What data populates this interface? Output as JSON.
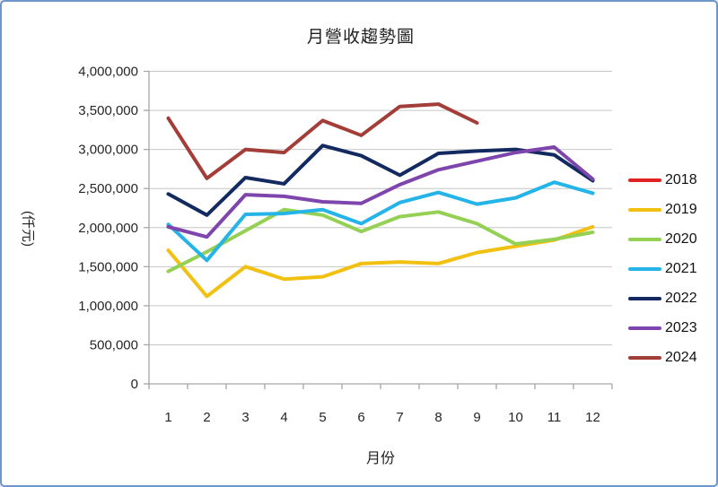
{
  "window": {
    "background": "#ffffff",
    "border_color": "#6d96cb"
  },
  "chart_data": {
    "type": "line",
    "title": "月營收趨勢圖",
    "xlabel": "月份",
    "ylabel": "(仟元)",
    "categories": [
      "1",
      "2",
      "3",
      "4",
      "5",
      "6",
      "7",
      "8",
      "9",
      "10",
      "11",
      "12"
    ],
    "ylim": [
      0,
      4000000
    ],
    "ytick_step": 500000,
    "grid": true,
    "legend_position": "right",
    "line_width": 4,
    "colors": {
      "gridline": "#c6c6c6",
      "axis": "#a6a6a6",
      "tick_label": "#262626"
    },
    "series": [
      {
        "name": "2018",
        "color": "#e02222",
        "values": []
      },
      {
        "name": "2019",
        "color": "#f2c010",
        "values": [
          1710000,
          1120000,
          1500000,
          1340000,
          1370000,
          1540000,
          1560000,
          1540000,
          1680000,
          1760000,
          1840000,
          2010000
        ]
      },
      {
        "name": "2020",
        "color": "#94d053",
        "values": [
          1440000,
          1690000,
          1960000,
          2230000,
          2160000,
          1950000,
          2140000,
          2200000,
          2050000,
          1790000,
          1850000,
          1940000
        ]
      },
      {
        "name": "2021",
        "color": "#25b4e8",
        "values": [
          2040000,
          1580000,
          2170000,
          2180000,
          2230000,
          2050000,
          2320000,
          2450000,
          2300000,
          2380000,
          2580000,
          2440000
        ]
      },
      {
        "name": "2022",
        "color": "#132a60",
        "values": [
          2430000,
          2160000,
          2640000,
          2560000,
          3050000,
          2920000,
          2670000,
          2950000,
          2980000,
          3000000,
          2930000,
          2600000
        ]
      },
      {
        "name": "2023",
        "color": "#7e46ad",
        "values": [
          2010000,
          1880000,
          2420000,
          2400000,
          2330000,
          2310000,
          2550000,
          2740000,
          2850000,
          2960000,
          3030000,
          2620000
        ]
      },
      {
        "name": "2024",
        "color": "#a33d38",
        "values": [
          3400000,
          2630000,
          3000000,
          2960000,
          3370000,
          3180000,
          3550000,
          3580000,
          3340000
        ]
      }
    ]
  }
}
